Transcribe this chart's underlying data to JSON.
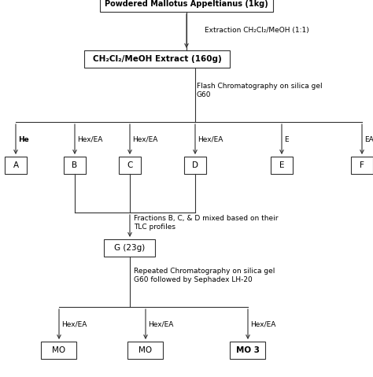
{
  "title_box": "Powdered Mallotus Appeltianus (1kg)",
  "box1": "CH₂Cl₂/MeOH Extract (160g)",
  "arrow1_label": "Extraction CH₂Cl₂/MeOH (1:1)",
  "flash_chrom_label": "Flash Chromatography on silica gel\nG60",
  "fractions": [
    "A",
    "B",
    "C",
    "D",
    "E",
    "F"
  ],
  "fraction_labels": [
    "He",
    "Hex/EA",
    "Hex/EA",
    "Hex/EA",
    "E",
    "EA/MeOH"
  ],
  "mix_label": "Fractions B, C, & D mixed based on their\nTLC profiles",
  "box_g": "G (23g)",
  "repeated_chrom_label": "Repeated Chromatography on silica gel\nG60 followed by Sephadex LH-20",
  "bottom_fractions": [
    "MO",
    "MO",
    "MO 3"
  ],
  "bottom_labels": [
    "Hex/EA",
    "Hex/EA",
    "Hex/EA"
  ],
  "bg_color": "#ffffff",
  "box_color": "#ffffff",
  "line_color": "#333333",
  "text_color": "#000000",
  "font_size": 7.5
}
